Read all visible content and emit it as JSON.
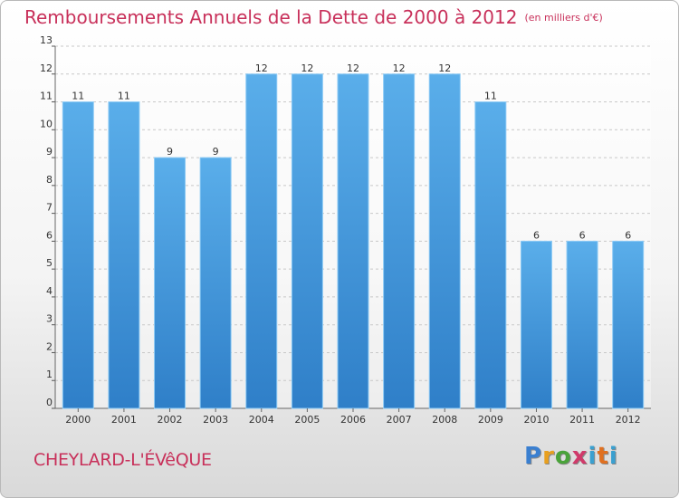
{
  "title": "Remboursements Annuels de la Dette de 2000 à 2012",
  "unit": "(en milliers d'€)",
  "commune": "CHEYLARD-L'ÉVêQUE",
  "brand": [
    "P",
    "r",
    "o",
    "x",
    "i",
    "t",
    "i"
  ],
  "colors": {
    "bar": "#4a9fe0",
    "title": "#c8305a",
    "grid": "#c8c8c8"
  },
  "chart_data": {
    "type": "bar",
    "title": "Remboursements Annuels de la Dette de 2000 à 2012",
    "xlabel": "",
    "ylabel": "",
    "categories": [
      "2000",
      "2001",
      "2002",
      "2003",
      "2004",
      "2005",
      "2006",
      "2007",
      "2008",
      "2009",
      "2010",
      "2011",
      "2012"
    ],
    "values": [
      11,
      11,
      9,
      9,
      12,
      12,
      12,
      12,
      12,
      11,
      6,
      6,
      6
    ],
    "ylim": [
      0,
      13
    ],
    "yticks": [
      "0",
      "1",
      "2",
      "3",
      "4",
      "5",
      "6",
      "7",
      "8",
      "9",
      "10",
      "11",
      "12",
      "13"
    ],
    "grid": true
  }
}
